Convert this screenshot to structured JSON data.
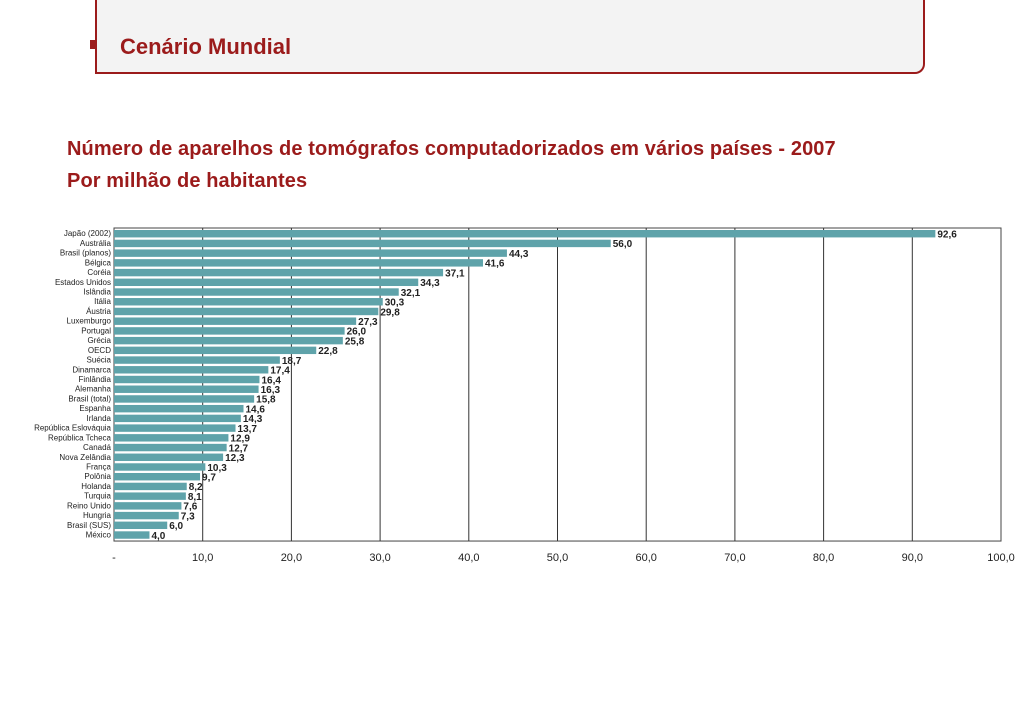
{
  "header": {
    "title": "Cenário Mundial"
  },
  "subtitle": {
    "line1": "Número de aparelhos de tomógrafos computadorizados em vários países - 2007",
    "line2": "Por milhão de habitantes"
  },
  "colors": {
    "accent": "#9b1b1b",
    "bar": "#5fa3aa"
  },
  "chart_data": {
    "type": "bar",
    "orientation": "horizontal",
    "categories": [
      "Japão (2002)",
      "Austrália",
      "Brasil (planos)",
      "Bélgica",
      "Coréia",
      "Estados Unidos",
      "Islândia",
      "Itália",
      "Áustria",
      "Luxemburgo",
      "Portugal",
      "Grécia",
      "OECD",
      "Suécia",
      "Dinamarca",
      "Finlândia",
      "Alemanha",
      "Brasil (total)",
      "Espanha",
      "Irlanda",
      "República Eslováquia",
      "República Tcheca",
      "Canadá",
      "Nova Zelândia",
      "França",
      "Polônia",
      "Holanda",
      "Turquia",
      "Reino Unido",
      "Hungria",
      "Brasil (SUS)",
      "México"
    ],
    "values": [
      92.6,
      56.0,
      44.3,
      41.6,
      37.1,
      34.3,
      32.1,
      30.3,
      29.8,
      27.3,
      26.0,
      25.8,
      22.8,
      18.7,
      17.4,
      16.4,
      16.3,
      15.8,
      14.6,
      14.3,
      13.7,
      12.9,
      12.7,
      12.3,
      10.3,
      9.7,
      8.2,
      8.1,
      7.6,
      7.3,
      6.0,
      4.0
    ],
    "value_labels": [
      "92,6",
      "56,0",
      "44,3",
      "41,6",
      "37,1",
      "34,3",
      "32,1",
      "30,3",
      "29,8",
      "27,3",
      "26,0",
      "25,8",
      "22,8",
      "18,7",
      "17,4",
      "16,4",
      "16,3",
      "15,8",
      "14,6",
      "14,3",
      "13,7",
      "12,9",
      "12,7",
      "12,3",
      "10,3",
      "9,7",
      "8,2",
      "8,1",
      "7,6",
      "7,3",
      "6,0",
      "4,0"
    ],
    "x_ticks": [
      "-",
      "10,0",
      "20,0",
      "30,0",
      "40,0",
      "50,0",
      "60,0",
      "70,0",
      "80,0",
      "90,0",
      "100,0"
    ],
    "xlim": [
      0,
      100
    ],
    "grid": true
  }
}
